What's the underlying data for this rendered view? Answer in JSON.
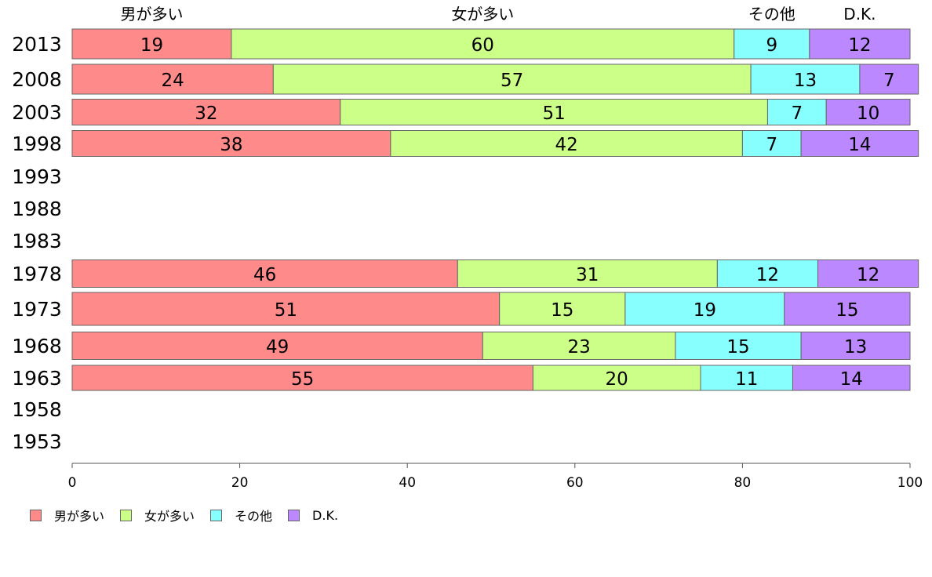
{
  "chart_data": {
    "type": "bar",
    "orientation": "horizontal",
    "stacked": true,
    "categories": [
      "2013",
      "2008",
      "2003",
      "1998",
      "1993",
      "1988",
      "1983",
      "1978",
      "1973",
      "1968",
      "1963",
      "1958",
      "1953"
    ],
    "series": [
      {
        "name": "男が多い",
        "color": "#ff8a8a",
        "values": [
          19,
          24,
          32,
          38,
          null,
          null,
          null,
          46,
          51,
          49,
          55,
          null,
          null
        ]
      },
      {
        "name": "女が多い",
        "color": "#ccff88",
        "values": [
          60,
          57,
          51,
          42,
          null,
          null,
          null,
          31,
          15,
          23,
          20,
          null,
          null
        ]
      },
      {
        "name": "その他",
        "color": "#88ffff",
        "values": [
          9,
          13,
          7,
          7,
          null,
          null,
          null,
          12,
          19,
          15,
          11,
          null,
          null
        ]
      },
      {
        "name": "D.K.",
        "color": "#bb88ff",
        "values": [
          12,
          7,
          10,
          14,
          null,
          null,
          null,
          12,
          15,
          13,
          14,
          null,
          null
        ]
      }
    ],
    "xlim": [
      0,
      100
    ],
    "xticks": [
      0,
      20,
      40,
      60,
      80,
      100
    ],
    "grid": false,
    "legend_position": "bottom-left",
    "top_labels": [
      "男が多い",
      "女が多い",
      "その他",
      "D.K."
    ]
  }
}
